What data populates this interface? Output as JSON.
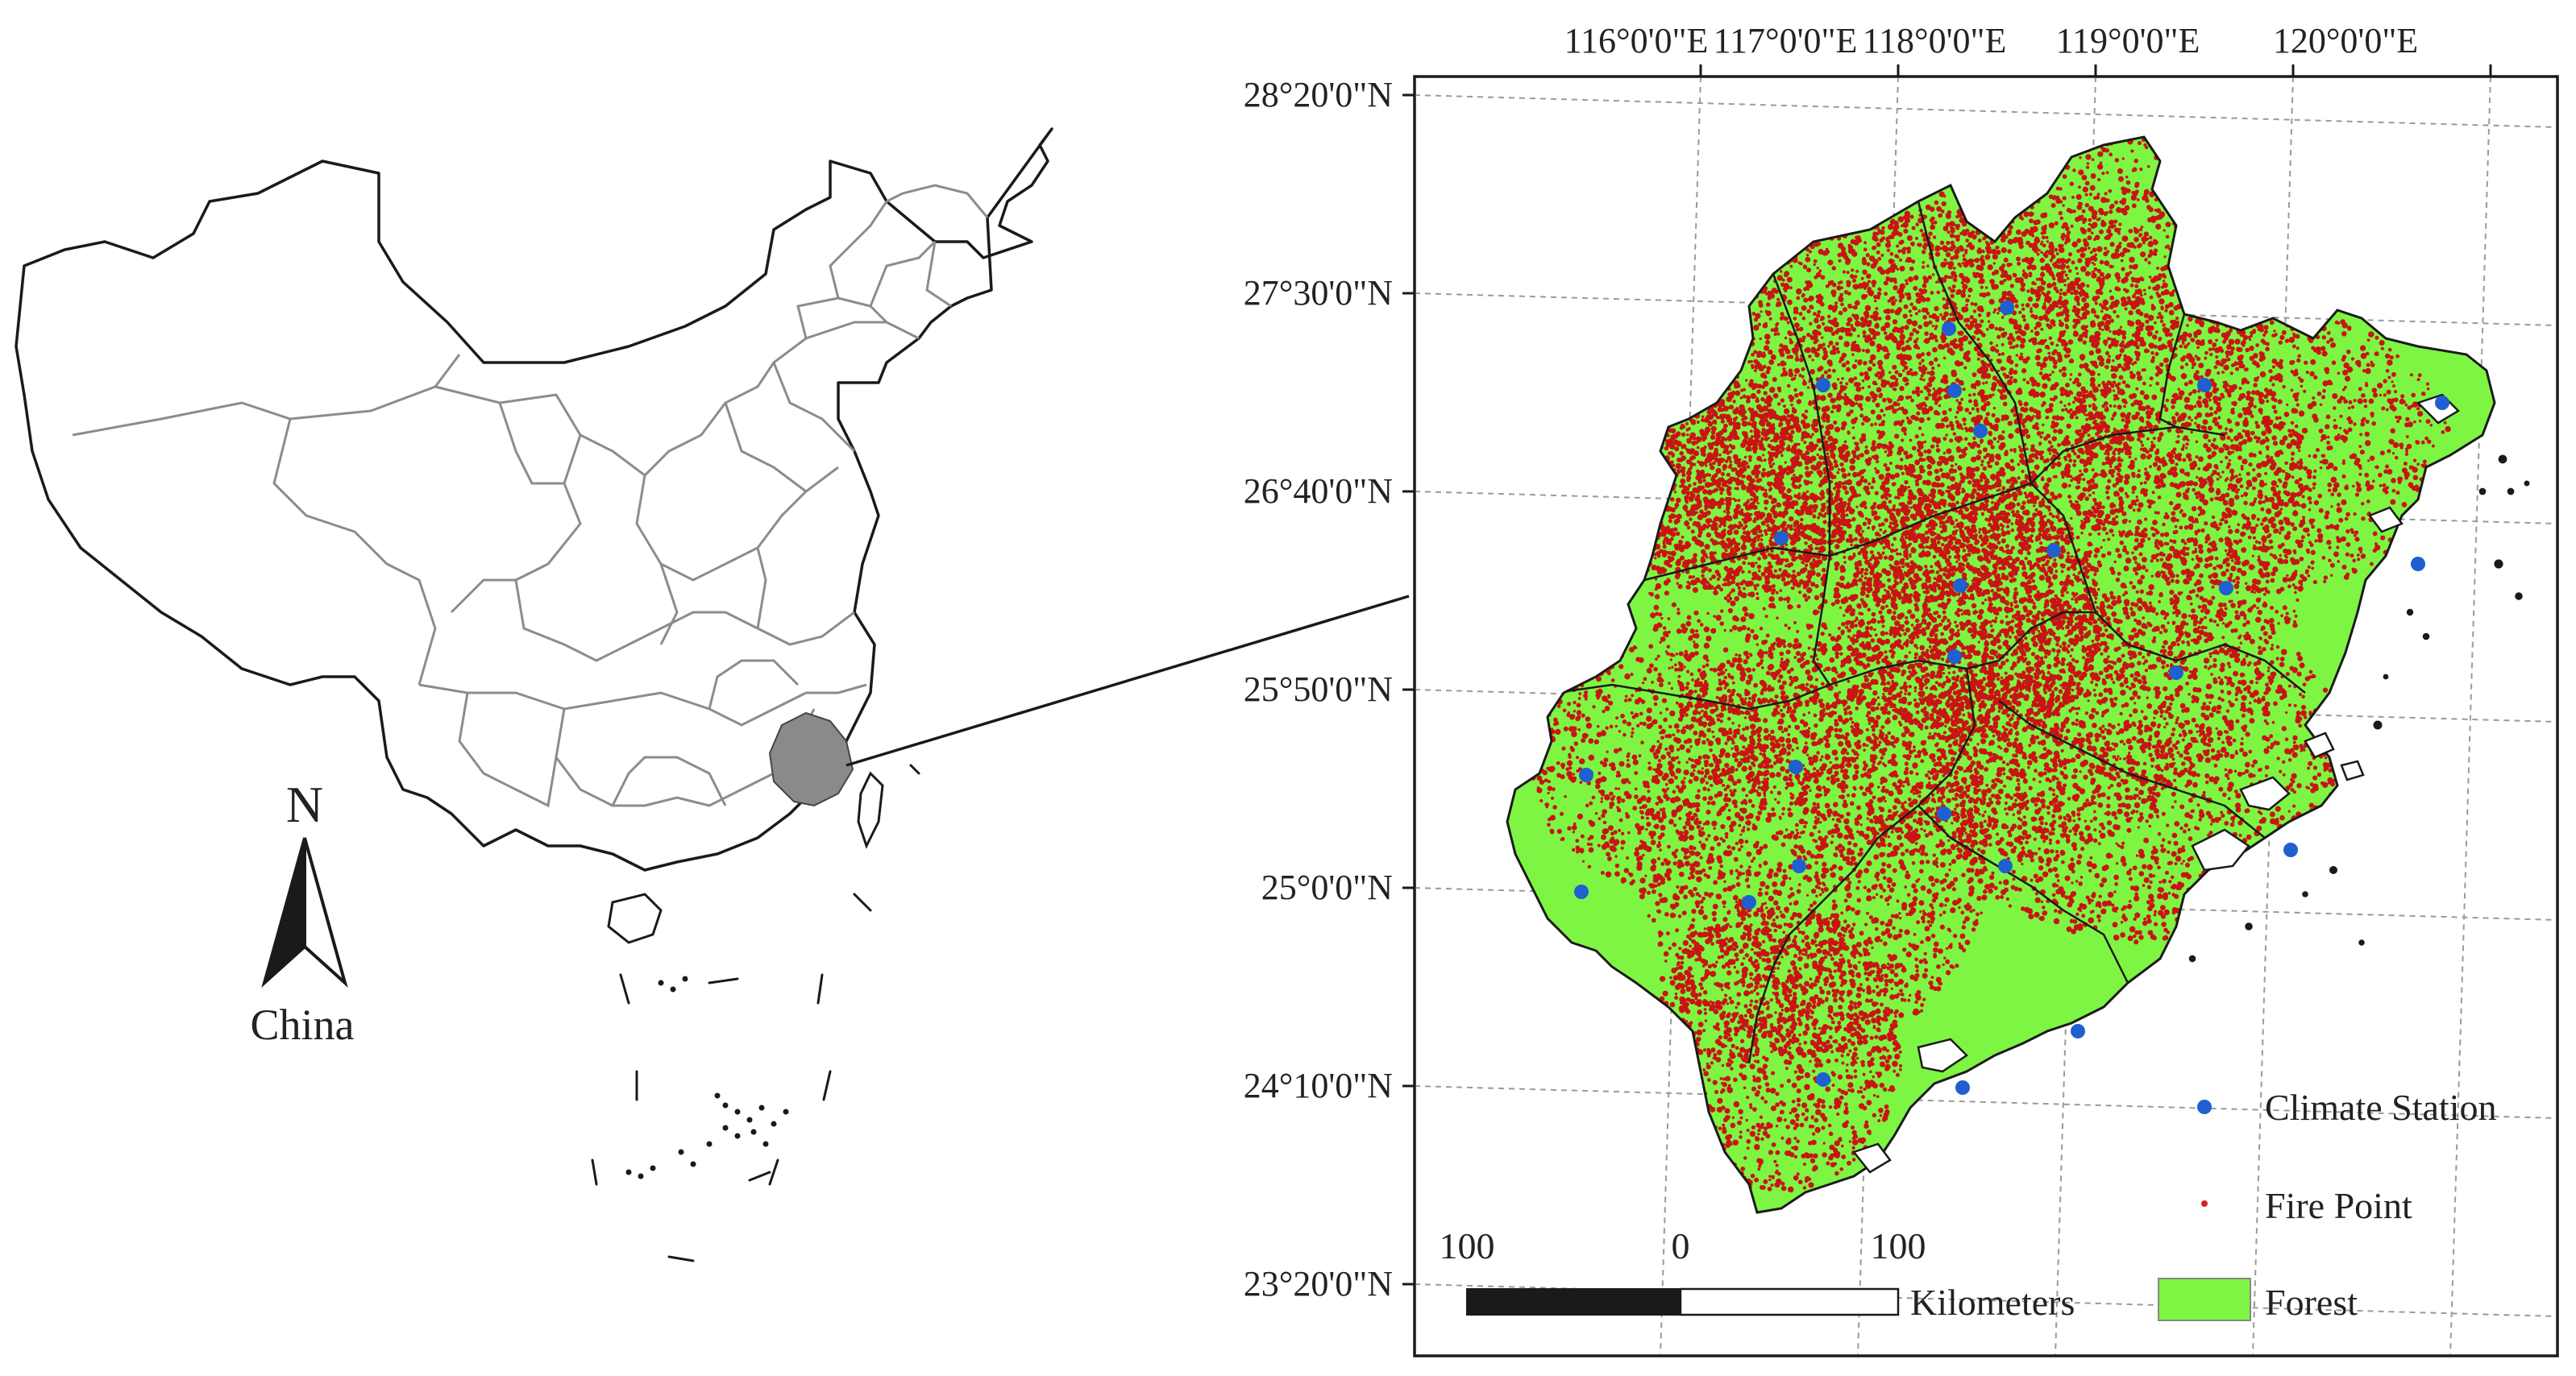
{
  "overview_map": {
    "country_label": "China",
    "north_label": "N"
  },
  "detail_map": {
    "lon_ticks": [
      "116°0'0\"E",
      "117°0'0\"E",
      "118°0'0\"E",
      "119°0'0\"E",
      "120°0'0\"E"
    ],
    "lat_ticks": [
      "28°20'0\"N",
      "27°30'0\"N",
      "26°40'0\"N",
      "25°50'0\"N",
      "25°0'0\"N",
      "24°10'0\"N",
      "23°20'0\"N"
    ]
  },
  "scale_bar": {
    "labels": [
      "100",
      "0",
      "100"
    ],
    "unit": "Kilometers"
  },
  "legend": {
    "items": [
      {
        "label": "Climate Station",
        "color": "#1f5fd0",
        "icon": "blue-dot-icon"
      },
      {
        "label": "Fire Point",
        "color": "#d42020",
        "icon": "red-dot-icon"
      },
      {
        "label": "Forest",
        "color": "#7ef542",
        "icon": "green-square-icon"
      }
    ]
  },
  "colors": {
    "forest": "#7ef542",
    "fire": "#c81414",
    "station": "#1f5fd0",
    "highlight_province": "#8a8a8a"
  }
}
